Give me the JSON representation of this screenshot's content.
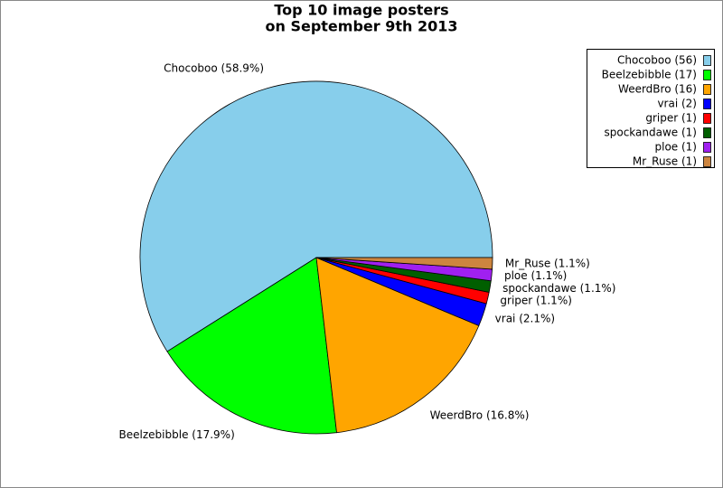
{
  "chart_data": {
    "type": "pie",
    "title": [
      "Top 10 image posters",
      "on September 9th 2013"
    ],
    "categories": [
      "Chocoboo",
      "Beelzebibble",
      "WeerdBro",
      "vrai",
      "griper",
      "spockandawe",
      "ploe",
      "Mr_Ruse"
    ],
    "values": [
      56,
      17,
      16,
      2,
      1,
      1,
      1,
      1
    ],
    "value_labels": [
      "Chocoboo (58.9%)",
      "Beelzebibble (17.9%)",
      "WeerdBro (16.8%)",
      "vrai (2.1%)",
      "griper (1.1%)",
      "spockandawe (1.1%)",
      "ploe (1.1%)",
      "Mr_Ruse (1.1%)"
    ],
    "legend_labels": [
      "Chocoboo (56)",
      "Beelzebibble (17)",
      "WeerdBro (16)",
      "vrai (2)",
      "griper (1)",
      "spockandawe (1)",
      "ploe (1)",
      "Mr_Ruse (1)"
    ],
    "colors": [
      "#87ceeb",
      "#00ff00",
      "#ffa500",
      "#0000ff",
      "#ff0000",
      "#005f00",
      "#a020f0",
      "#cd853f"
    ],
    "legend": "top-right"
  }
}
